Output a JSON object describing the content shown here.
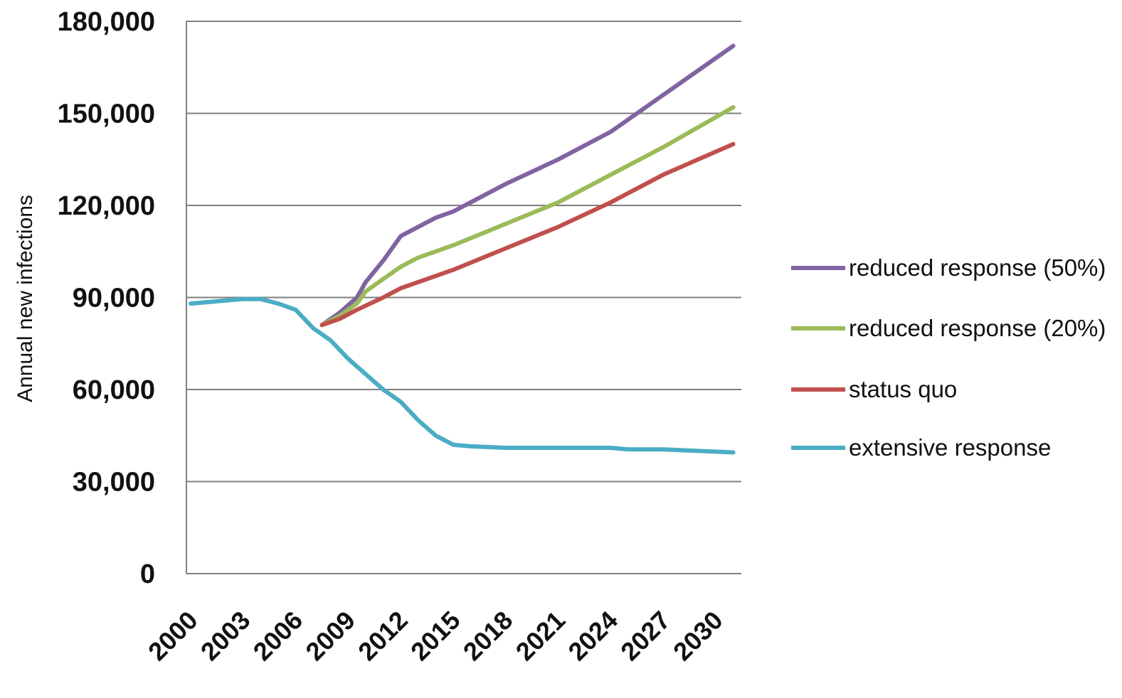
{
  "chart_data": {
    "type": "line",
    "title": "",
    "xlabel": "",
    "ylabel": "Annual new infections",
    "xlim": [
      2000,
      2031
    ],
    "ylim": [
      0,
      180000
    ],
    "grid": true,
    "legend_position": "right",
    "x_ticks": [
      "2000",
      "2003",
      "2006",
      "2009",
      "2012",
      "2015",
      "2018",
      "2021",
      "2024",
      "2027",
      "2030"
    ],
    "y_ticks": [
      {
        "value": 0,
        "label": "0"
      },
      {
        "value": 30000,
        "label": "30,000"
      },
      {
        "value": 60000,
        "label": "60,000"
      },
      {
        "value": 90000,
        "label": "90,000"
      },
      {
        "value": 120000,
        "label": "120,000"
      },
      {
        "value": 150000,
        "label": "150,000"
      },
      {
        "value": 180000,
        "label": "180,000"
      }
    ],
    "series": [
      {
        "name": "reduced response (50%)",
        "color": "#8064a2",
        "points": [
          [
            2007.5,
            81000
          ],
          [
            2008.5,
            85000
          ],
          [
            2009.5,
            90000
          ],
          [
            2010,
            95000
          ],
          [
            2011,
            102000
          ],
          [
            2012,
            110000
          ],
          [
            2013,
            113000
          ],
          [
            2014,
            116000
          ],
          [
            2015,
            118000
          ],
          [
            2016,
            121000
          ],
          [
            2018,
            127000
          ],
          [
            2021,
            135000
          ],
          [
            2024,
            144000
          ],
          [
            2027,
            156000
          ],
          [
            2031,
            172000
          ]
        ]
      },
      {
        "name": "reduced response (20%)",
        "color": "#9bbb59",
        "points": [
          [
            2007.5,
            81000
          ],
          [
            2008.5,
            84000
          ],
          [
            2009.5,
            88000
          ],
          [
            2010,
            92000
          ],
          [
            2011,
            96000
          ],
          [
            2012,
            100000
          ],
          [
            2013,
            103000
          ],
          [
            2015,
            107000
          ],
          [
            2018,
            114000
          ],
          [
            2021,
            121000
          ],
          [
            2024,
            130000
          ],
          [
            2027,
            139000
          ],
          [
            2031,
            152000
          ]
        ]
      },
      {
        "name": "status quo",
        "color": "#c0504d",
        "points": [
          [
            2007.5,
            81000
          ],
          [
            2008.5,
            83000
          ],
          [
            2009.5,
            86000
          ],
          [
            2011,
            90000
          ],
          [
            2012,
            93000
          ],
          [
            2015,
            99000
          ],
          [
            2018,
            106000
          ],
          [
            2021,
            113000
          ],
          [
            2024,
            121000
          ],
          [
            2027,
            130000
          ],
          [
            2031,
            140000
          ]
        ]
      },
      {
        "name": "extensive response",
        "color": "#4bacc6",
        "points": [
          [
            2000,
            88000
          ],
          [
            2001,
            88500
          ],
          [
            2002,
            89000
          ],
          [
            2003,
            89500
          ],
          [
            2004,
            89500
          ],
          [
            2005,
            88000
          ],
          [
            2006,
            86000
          ],
          [
            2007,
            80000
          ],
          [
            2008,
            76000
          ],
          [
            2009,
            70000
          ],
          [
            2010,
            65000
          ],
          [
            2011,
            60000
          ],
          [
            2012,
            56000
          ],
          [
            2013,
            50000
          ],
          [
            2014,
            45000
          ],
          [
            2015,
            42000
          ],
          [
            2016,
            41500
          ],
          [
            2018,
            41000
          ],
          [
            2021,
            41000
          ],
          [
            2024,
            41000
          ],
          [
            2025,
            40500
          ],
          [
            2027,
            40500
          ],
          [
            2031,
            39500
          ]
        ]
      }
    ]
  }
}
